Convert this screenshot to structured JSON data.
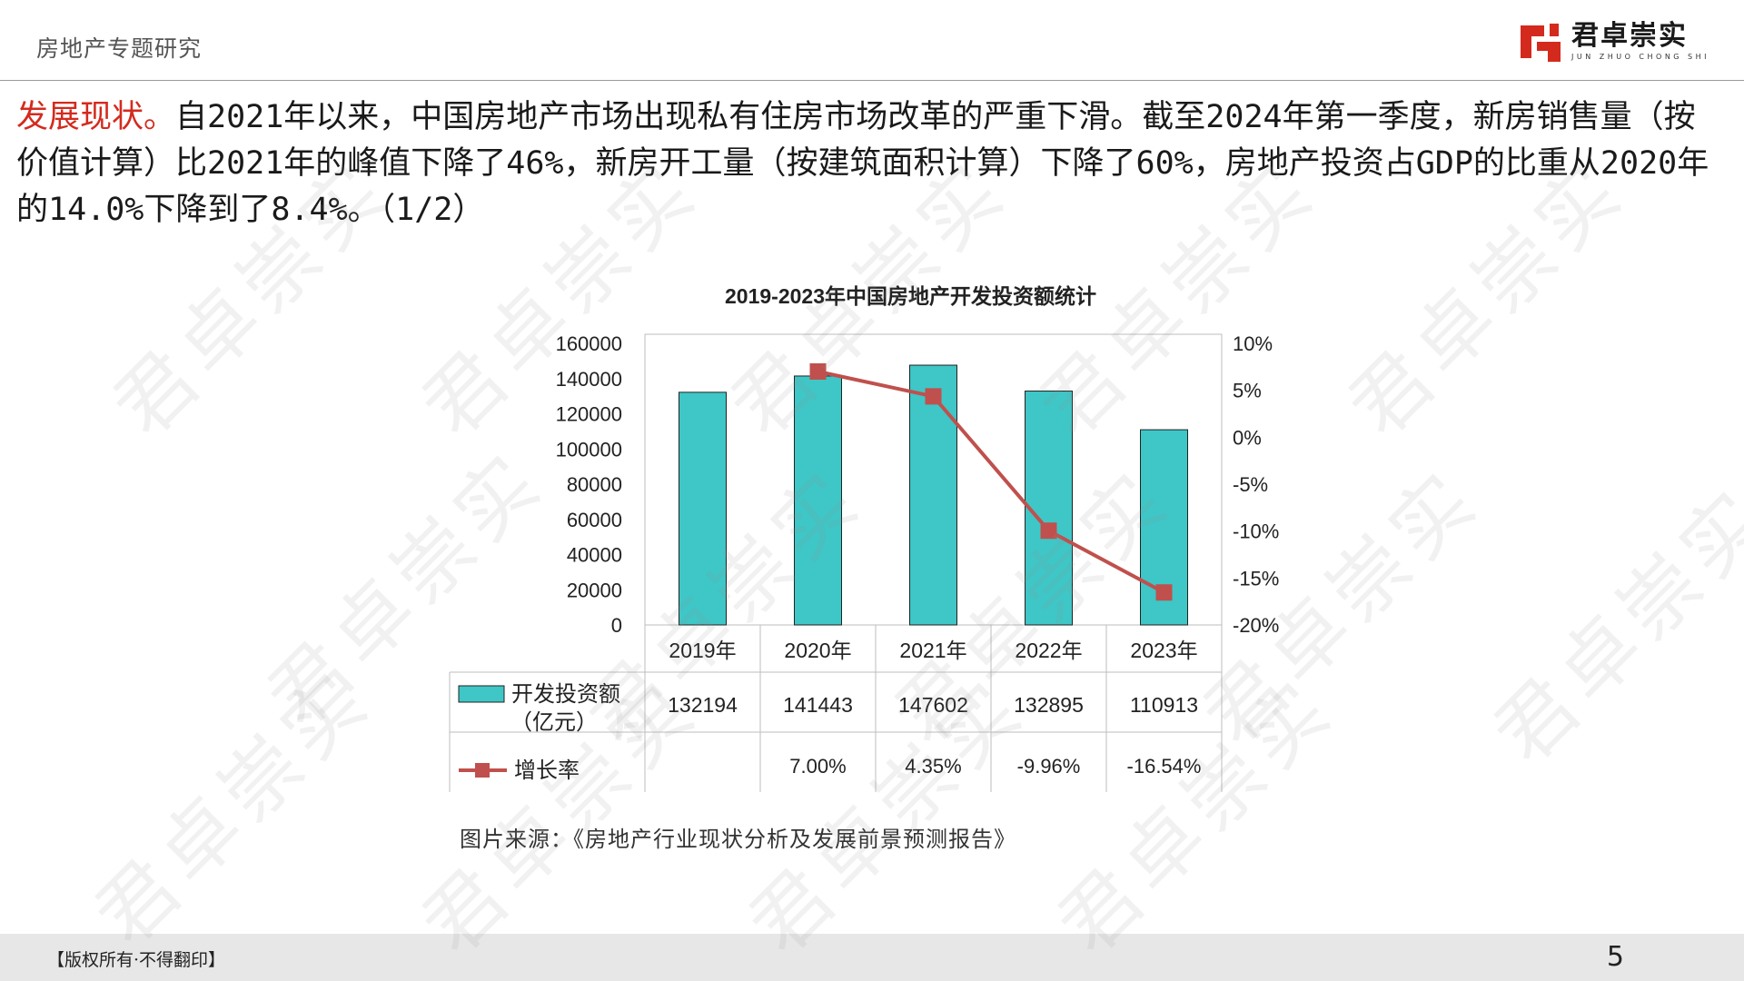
{
  "header": {
    "title": "房地产专题研究"
  },
  "logo": {
    "cn": "君卓崇实",
    "en": "JUN ZHUO CHONG SHI"
  },
  "intro": {
    "highlight": "发展现状。",
    "text": "自2021年以来，中国房地产市场出现私有住房市场改革的严重下滑。截至2024年第一季度，新房销售量（按价值计算）比2021年的峰值下降了46%，新房开工量（按建筑面积计算）下降了60%，房地产投资占GDP的比重从2020年的14.0%下降到了8.4%。（1/2）"
  },
  "chart_data": {
    "type": "bar",
    "title": "2019-2023年中国房地产开发投资额统计",
    "categories": [
      "2019年",
      "2020年",
      "2021年",
      "2022年",
      "2023年"
    ],
    "series": [
      {
        "name": "开发投资额（亿元）",
        "type": "bar",
        "axis": "left",
        "values": [
          132194,
          141443,
          147602,
          132895,
          110913
        ],
        "color": "#3fc6c6"
      },
      {
        "name": "增长率",
        "type": "line",
        "axis": "right",
        "values": [
          null,
          7.0,
          4.35,
          -9.96,
          -16.54
        ],
        "color": "#c0504d"
      }
    ],
    "y_left": {
      "ylim": [
        0,
        160000
      ],
      "ticks": [
        "160000",
        "140000",
        "120000",
        "100000",
        "80000",
        "60000",
        "40000",
        "20000",
        "0"
      ]
    },
    "y_right": {
      "ylim": [
        -20,
        10
      ],
      "ticks": [
        "10%",
        "5%",
        "0%",
        "-5%",
        "-10%",
        "-15%",
        "-20%"
      ]
    },
    "table": {
      "bar_row_label_line1": "开发投资额",
      "bar_row_label_line2": "（亿元）",
      "bar_row": [
        "132194",
        "141443",
        "147602",
        "132895",
        "110913"
      ],
      "line_row_label": "增长率",
      "line_row": [
        "",
        "7.00%",
        "4.35%",
        "-9.96%",
        "-16.54%"
      ]
    }
  },
  "caption": "图片来源：《房地产行业现状分析及发展前景预测报告》",
  "footer": {
    "left": "【版权所有·不得翻印】",
    "page": "5"
  },
  "watermark": "君卓崇实",
  "colors": {
    "accent": "#d42a1e",
    "bar": "#3fc6c6",
    "line": "#c0504d"
  }
}
